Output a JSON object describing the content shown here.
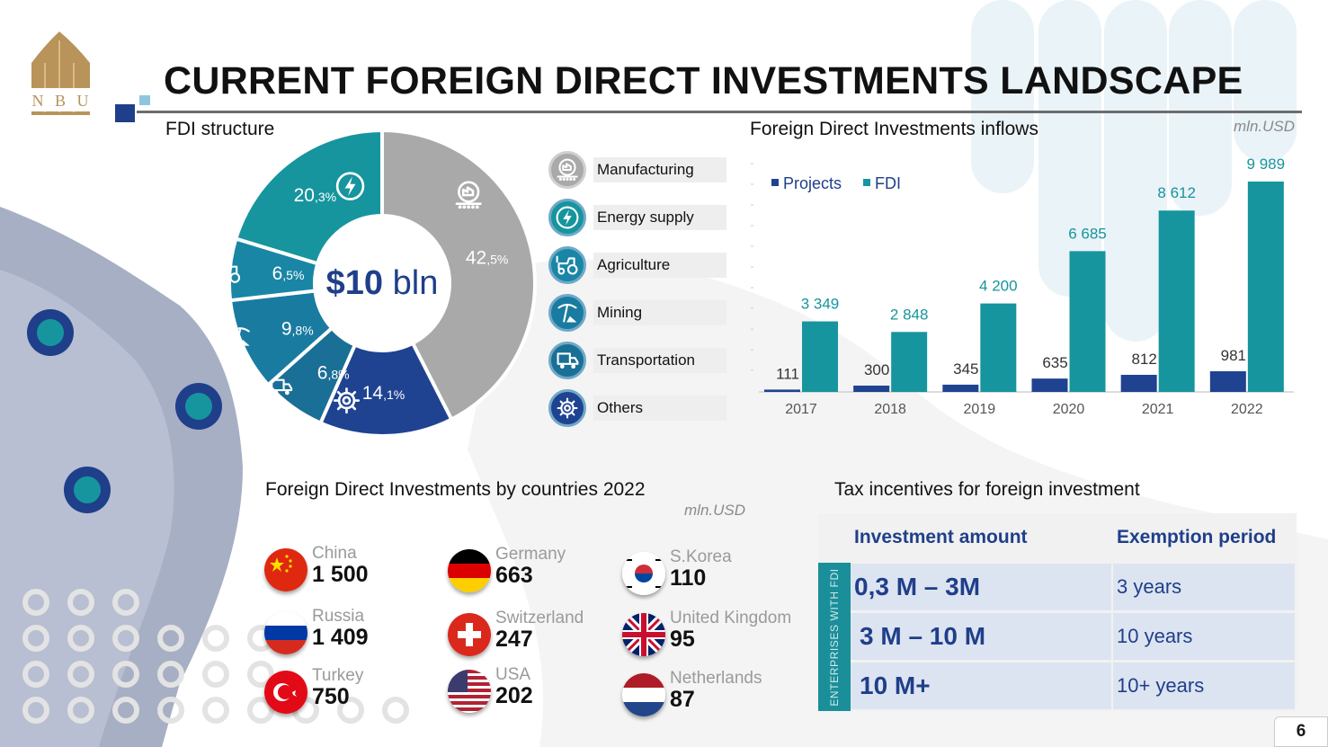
{
  "logo": {
    "letters": [
      "N",
      "B",
      "U"
    ]
  },
  "page_title": "CURRENT FOREIGN DIRECT INVESTMENTS LANDSCAPE",
  "fdi_structure": {
    "label": "FDI structure",
    "center_value": "$10",
    "center_unit": "bln",
    "segments": [
      {
        "name": "Manufacturing",
        "value": 42.5,
        "int": "42",
        "frac": ",5%",
        "color": "#a9a9a9",
        "icon": "factory-icon"
      },
      {
        "name": "Others",
        "value": 14.1,
        "int": "14",
        "frac": ",1%",
        "color": "#1f4391",
        "icon": "gear-icon"
      },
      {
        "name": "Transportation",
        "value": 6.8,
        "int": "6",
        "frac": ",8%",
        "color": "#1a6f96",
        "icon": "truck-icon"
      },
      {
        "name": "Mining",
        "value": 9.8,
        "int": "9",
        "frac": ",8%",
        "color": "#1a7ba0",
        "icon": "pickaxe-icon"
      },
      {
        "name": "Agriculture",
        "value": 6.5,
        "int": "6",
        "frac": ",5%",
        "color": "#1a86a6",
        "icon": "tractor-icon"
      },
      {
        "name": "Energy supply",
        "value": 20.3,
        "int": "20",
        "frac": ",3%",
        "color": "#16959e",
        "icon": "lightning-icon"
      }
    ]
  },
  "legend": [
    {
      "label": "Manufacturing",
      "icon": "factory-icon",
      "color": "#a9a9a9"
    },
    {
      "label": "Energy supply",
      "icon": "lightning-icon",
      "color": "#16959e"
    },
    {
      "label": "Agriculture",
      "icon": "tractor-icon",
      "color": "#1a86a6"
    },
    {
      "label": "Mining",
      "icon": "pickaxe-icon",
      "color": "#1a7ba0"
    },
    {
      "label": "Transportation",
      "icon": "truck-icon",
      "color": "#1a6f96"
    },
    {
      "label": "Others",
      "icon": "gear-icon",
      "color": "#1f4391"
    }
  ],
  "inflows": {
    "label": "Foreign Direct Investments inflows",
    "unit": "mln.USD"
  },
  "chart_data": {
    "type": "bar",
    "categories": [
      "2017",
      "2018",
      "2019",
      "2020",
      "2021",
      "2022"
    ],
    "series": [
      {
        "name": "Projects",
        "color": "#1f4391",
        "values": [
          111,
          300,
          345,
          635,
          812,
          981
        ],
        "labels": [
          "111",
          "300",
          "345",
          "635",
          "812",
          "981"
        ]
      },
      {
        "name": "FDI",
        "color": "#16959e",
        "values": [
          3349,
          2848,
          4200,
          6685,
          8612,
          9989
        ],
        "labels": [
          "3 349",
          "2 848",
          "4 200",
          "6 685",
          "8 612",
          "9 989"
        ]
      }
    ],
    "legend_position": "top-left",
    "grid": false
  },
  "countries_section": {
    "label": "Foreign Direct Investments by countries 2022",
    "unit": "mln.USD",
    "countries": [
      {
        "name": "China",
        "value": "1 500",
        "flag": "china-flag"
      },
      {
        "name": "Russia",
        "value": "1 409",
        "flag": "russia-flag"
      },
      {
        "name": "Turkey",
        "value": "750",
        "flag": "turkey-flag"
      },
      {
        "name": "Germany",
        "value": "663",
        "flag": "germany-flag"
      },
      {
        "name": "Switzerland",
        "value": "247",
        "flag": "switzerland-flag"
      },
      {
        "name": "USA",
        "value": "202",
        "flag": "usa-flag"
      },
      {
        "name": "S.Korea",
        "value": "110",
        "flag": "korea-flag"
      },
      {
        "name": "United Kingdom",
        "value": "95",
        "flag": "uk-flag"
      },
      {
        "name": "Netherlands",
        "value": "87",
        "flag": "netherlands-flag"
      }
    ]
  },
  "tax": {
    "label": "Tax incentives for foreign investment",
    "col_amount": "Investment amount",
    "col_period": "Exemption period",
    "side_label": "ENTERPRISES WITH FDI",
    "rows": [
      {
        "amount": "0,3 M – 3M",
        "period": "3 years"
      },
      {
        "amount": "3 M – 10 M",
        "period": "10 years"
      },
      {
        "amount": "10 M+",
        "period": "10+ years"
      }
    ]
  },
  "page_number": "6"
}
